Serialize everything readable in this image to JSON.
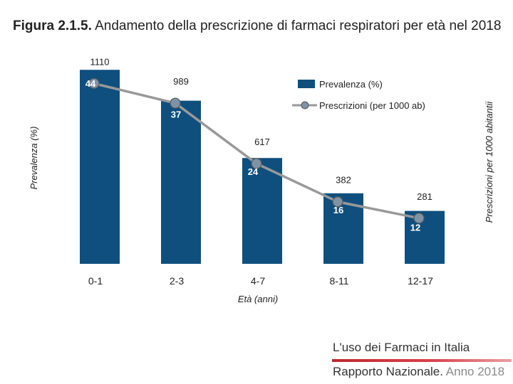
{
  "header": {
    "figure_number": "Figura 2.1.5.",
    "title": "Andamento della prescrizione di farmaci respiratori per età nel 2018"
  },
  "footer": {
    "line1": "L'uso dei Farmaci in Italia",
    "line2_main": "Rapporto Nazionale.",
    "line2_year": "Anno 2018",
    "accent_color": "#c0282e"
  },
  "chart_data": {
    "type": "bar",
    "categories": [
      "0-1",
      "2-3",
      "4-7",
      "8-11",
      "12-17"
    ],
    "xlabel": "Età (anni)",
    "ylabel": "Prevalenza (%)",
    "y2label": "Prescrizioni per 1000 abitantii",
    "ylim": [
      0,
      50
    ],
    "y2lim": [
      0,
      1300
    ],
    "grid": false,
    "legend_position": "top-right",
    "series": [
      {
        "name": "Prevalenza (%)",
        "type": "bar",
        "axis": "left",
        "color": "#0f4f7e",
        "values": [
          44,
          37,
          24,
          16,
          12
        ]
      },
      {
        "name": "Prescrizioni (per 1000 ab)",
        "type": "line",
        "axis": "right",
        "color": "#999999",
        "marker_color": "#7f93a6",
        "values": [
          1110,
          989,
          617,
          382,
          281
        ]
      }
    ]
  }
}
